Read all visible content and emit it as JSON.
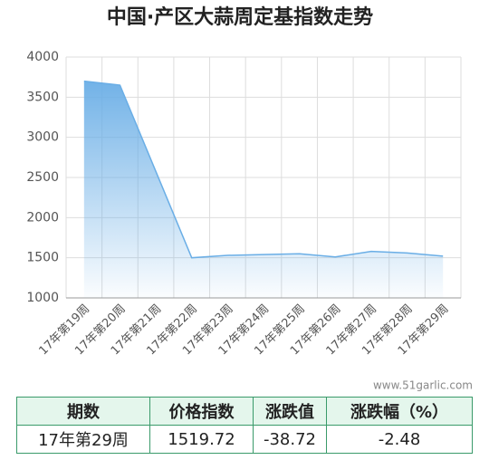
{
  "chart_data": {
    "type": "line",
    "title": "中国·产区大蒜周定基指数走势",
    "categories": [
      "17年第19周",
      "17年第20周",
      "17年第21周",
      "17年第22周",
      "17年第23周",
      "17年第24周",
      "17年第25周",
      "17年第26周",
      "17年第27周",
      "17年第28周",
      "17年第29周"
    ],
    "series": [
      {
        "name": "定基指数",
        "color": "#6aaee6",
        "values": [
          3700,
          3650,
          2575,
          1500,
          1530,
          1540,
          1550,
          1510,
          1580,
          1560,
          1519.72
        ]
      }
    ],
    "ylim": [
      1000,
      4000
    ],
    "yticks": [
      1000,
      1500,
      2000,
      2500,
      3000,
      3500,
      4000
    ],
    "grid": true,
    "watermark": "www.51garlic.com"
  },
  "table": {
    "headers": [
      "期数",
      "价格指数",
      "涨跌值",
      "涨跌幅（%）"
    ],
    "rows": [
      [
        "17年第29周",
        "1519.72",
        "-38.72",
        "-2.48"
      ]
    ]
  }
}
